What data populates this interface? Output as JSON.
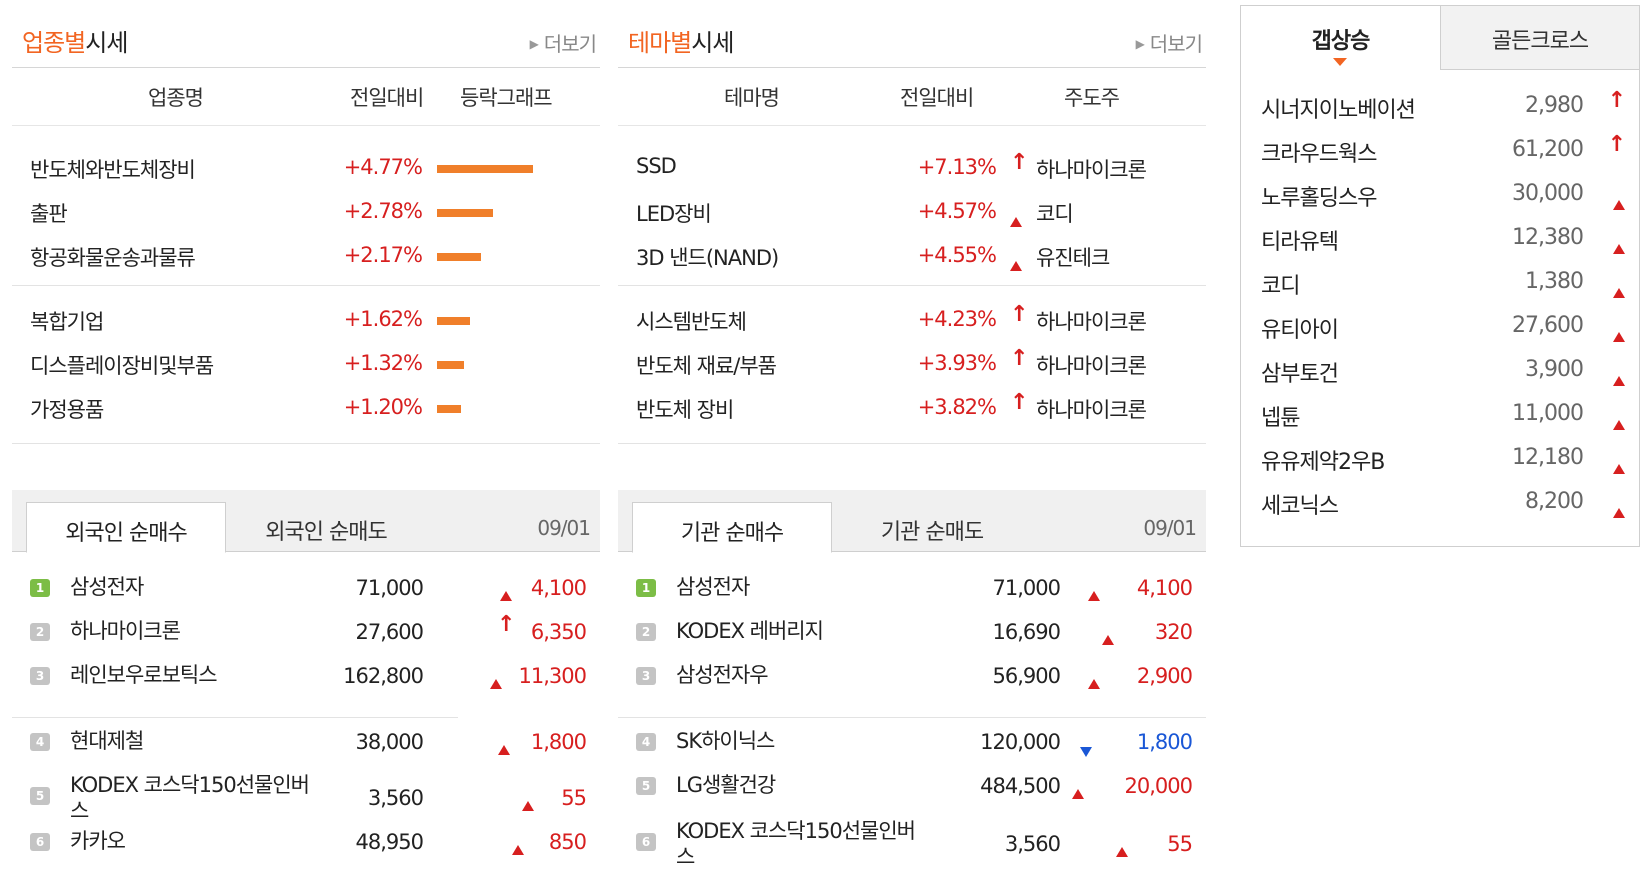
{
  "industry": {
    "title_highlight": "업종별",
    "title_rest": "시세",
    "more": "더보기",
    "cols": {
      "name": "업종명",
      "change": "전일대비",
      "graph": "등락그래프"
    },
    "rows": [
      {
        "name": "반도체와반도체장비",
        "change": "+4.77%",
        "pct": 4.77
      },
      {
        "name": "출판",
        "change": "+2.78%",
        "pct": 2.78
      },
      {
        "name": "항공화물운송과물류",
        "change": "+2.17%",
        "pct": 2.17
      },
      {
        "name": "복합기업",
        "change": "+1.62%",
        "pct": 1.62
      },
      {
        "name": "디스플레이장비및부품",
        "change": "+1.32%",
        "pct": 1.32
      },
      {
        "name": "가정용품",
        "change": "+1.20%",
        "pct": 1.2
      }
    ]
  },
  "theme": {
    "title_highlight": "테마별",
    "title_rest": "시세",
    "more": "더보기",
    "cols": {
      "name": "테마명",
      "change": "전일대비",
      "leader": "주도주"
    },
    "rows": [
      {
        "name": "SSD",
        "change": "+7.13%",
        "mark": "upper-limit-arrow",
        "leader": "하나마이크론"
      },
      {
        "name": "LED장비",
        "change": "+4.57%",
        "mark": "up-triangle",
        "leader": "코디"
      },
      {
        "name": "3D 낸드(NAND)",
        "change": "+4.55%",
        "mark": "up-triangle",
        "leader": "유진테크"
      },
      {
        "name": "시스템반도체",
        "change": "+4.23%",
        "mark": "upper-limit-arrow",
        "leader": "하나마이크론"
      },
      {
        "name": "반도체 재료/부품",
        "change": "+3.93%",
        "mark": "upper-limit-arrow",
        "leader": "하나마이크론"
      },
      {
        "name": "반도체 장비",
        "change": "+3.82%",
        "mark": "upper-limit-arrow",
        "leader": "하나마이크론"
      }
    ]
  },
  "gap": {
    "tabs": [
      "갭상승",
      "골든크로스"
    ],
    "rows": [
      {
        "name": "시너지이노베이션",
        "price": "2,980",
        "mark": "upper-limit-arrow"
      },
      {
        "name": "크라우드웍스",
        "price": "61,200",
        "mark": "upper-limit-arrow"
      },
      {
        "name": "노루홀딩스우",
        "price": "30,000",
        "mark": "up-triangle"
      },
      {
        "name": "티라유텍",
        "price": "12,380",
        "mark": "up-triangle"
      },
      {
        "name": "코디",
        "price": "1,380",
        "mark": "up-triangle"
      },
      {
        "name": "유티아이",
        "price": "27,600",
        "mark": "up-triangle"
      },
      {
        "name": "삼부토건",
        "price": "3,900",
        "mark": "up-triangle"
      },
      {
        "name": "넵튠",
        "price": "11,000",
        "mark": "up-triangle"
      },
      {
        "name": "유유제약2우B",
        "price": "12,180",
        "mark": "up-triangle"
      },
      {
        "name": "세코닉스",
        "price": "8,200",
        "mark": "up-triangle"
      }
    ]
  },
  "foreign": {
    "tabs": [
      "외국인 순매수",
      "외국인 순매도"
    ],
    "date": "09/01",
    "rows": [
      {
        "rank": "1",
        "name": "삼성전자",
        "price": "71,000",
        "mark": "up-triangle",
        "change": "4,100"
      },
      {
        "rank": "2",
        "name": "하나마이크론",
        "price": "27,600",
        "mark": "upper-limit-arrow",
        "change": "6,350"
      },
      {
        "rank": "3",
        "name": "레인보우로보틱스",
        "price": "162,800",
        "mark": "up-triangle",
        "change": "11,300"
      },
      {
        "rank": "4",
        "name": "현대제철",
        "price": "38,000",
        "mark": "up-triangle",
        "change": "1,800"
      },
      {
        "rank": "5",
        "name": "KODEX 코스닥150선물인버스",
        "name_l1": "KODEX 코스닥150선물인버",
        "name_l2": "스",
        "price": "3,560",
        "mark": "up-triangle",
        "change": "55"
      },
      {
        "rank": "6",
        "name": "카카오",
        "price": "48,950",
        "mark": "up-triangle",
        "change": "850"
      }
    ]
  },
  "institution": {
    "tabs": [
      "기관 순매수",
      "기관 순매도"
    ],
    "date": "09/01",
    "rows": [
      {
        "rank": "1",
        "name": "삼성전자",
        "price": "71,000",
        "mark": "up-triangle",
        "change": "4,100"
      },
      {
        "rank": "2",
        "name": "KODEX 레버리지",
        "price": "16,690",
        "mark": "up-triangle",
        "change": "320"
      },
      {
        "rank": "3",
        "name": "삼성전자우",
        "price": "56,900",
        "mark": "up-triangle",
        "change": "2,900"
      },
      {
        "rank": "4",
        "name": "SK하이닉스",
        "price": "120,000",
        "mark": "down-triangle",
        "change": "1,800"
      },
      {
        "rank": "5",
        "name": "LG생활건강",
        "price": "484,500",
        "mark": "up-triangle",
        "change": "20,000"
      },
      {
        "rank": "6",
        "name": "KODEX 코스닥150선물인버스",
        "name_l1": "KODEX 코스닥150선물인버",
        "name_l2": "스",
        "price": "3,560",
        "mark": "up-triangle",
        "change": "55"
      }
    ]
  }
}
